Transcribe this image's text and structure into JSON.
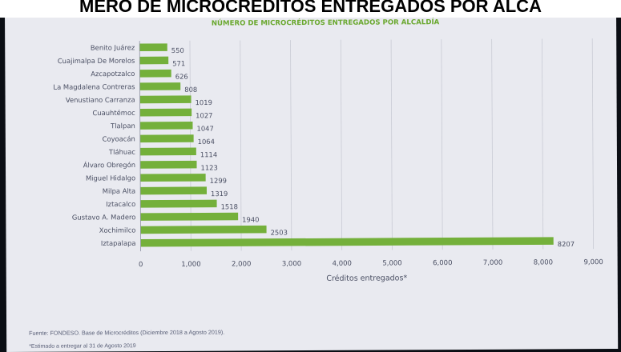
{
  "banner_text": "MERO DE MICROCRÉDITOS ENTREGADOS POR ALCA",
  "source_text": "Fuente: FONDESO. Base de Microcréditos (Diciembre 2018 a Agosto 2019).",
  "note_text": "*Estimado a entregar al 31 de Agosto 2019",
  "colors": {
    "bar": "#74b03b",
    "title": "#6aa82f",
    "grid": "#c9cbd4",
    "text": "#4a4f63"
  },
  "chart_data": {
    "type": "bar",
    "orientation": "horizontal",
    "title": "NÚMERO DE MICROCRÉDITOS ENTREGADOS POR ALCALDÍA",
    "xlabel": "Créditos entregados*",
    "ylabel": "",
    "xlim": [
      0,
      9000
    ],
    "xticks": [
      0,
      1000,
      2000,
      3000,
      4000,
      5000,
      6000,
      7000,
      8000,
      9000
    ],
    "xtick_labels": [
      "0",
      "1,000",
      "2,000",
      "3,000",
      "4,000",
      "5,000",
      "6,000",
      "7,000",
      "8,000",
      "9,000"
    ],
    "grid": "vertical",
    "categories": [
      "Benito Juárez",
      "Cuajimalpa De Morelos",
      "Azcapotzalco",
      "La Magdalena Contreras",
      "Venustiano Carranza",
      "Cuauhtémoc",
      "Tlalpan",
      "Coyoacán",
      "Tláhuac",
      "Álvaro Obregón",
      "Miguel Hidalgo",
      "Milpa Alta",
      "Iztacalco",
      "Gustavo A. Madero",
      "Xochimilco",
      "Iztapalapa"
    ],
    "values": [
      550,
      571,
      626,
      808,
      1019,
      1027,
      1047,
      1064,
      1114,
      1123,
      1299,
      1319,
      1518,
      1940,
      2503,
      8207
    ]
  }
}
